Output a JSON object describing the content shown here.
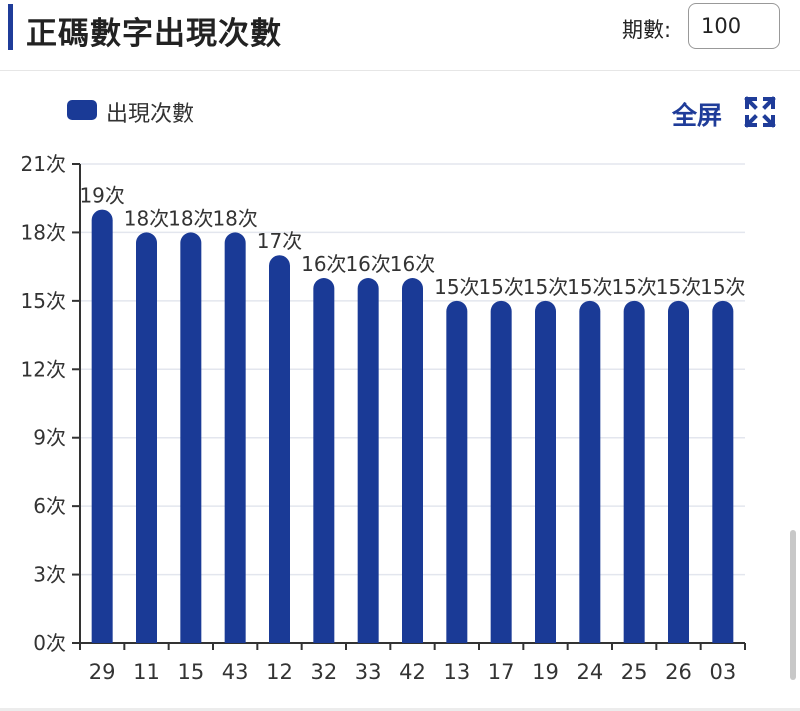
{
  "header": {
    "title": "正碼數字出現次數",
    "period_label": "期數:",
    "period_value": "100"
  },
  "legend": {
    "label": "出現次數"
  },
  "toolbar": {
    "fullscreen_label": "全屏",
    "fullscreen_icon": "expand-icon"
  },
  "colors": {
    "accent": "#1f3c99",
    "bar": "#1a3a96"
  },
  "chart_data": {
    "type": "bar",
    "categories": [
      "29",
      "11",
      "15",
      "43",
      "12",
      "32",
      "33",
      "42",
      "13",
      "17",
      "19",
      "24",
      "25",
      "26",
      "03"
    ],
    "series": [
      {
        "name": "出現次數",
        "values": [
          19,
          18,
          18,
          18,
          17,
          16,
          16,
          16,
          15,
          15,
          15,
          15,
          15,
          15,
          15
        ]
      }
    ],
    "ylim": [
      0,
      21
    ],
    "yticks": [
      0,
      3,
      6,
      9,
      12,
      15,
      18,
      21
    ],
    "ytick_suffix": "次",
    "value_suffix": "次",
    "grid": true,
    "legend_position": "top-left"
  }
}
